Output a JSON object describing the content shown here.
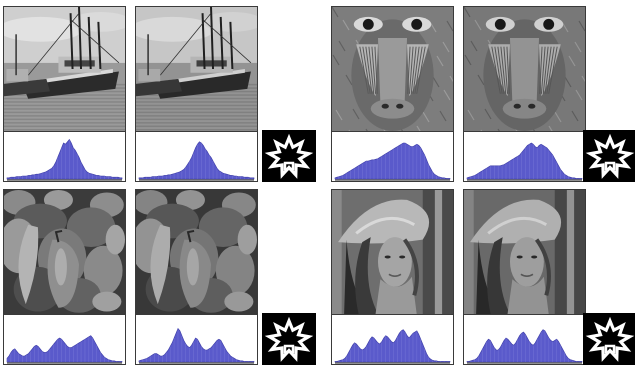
{
  "figure": {
    "groups": [
      {
        "scene": "boats",
        "tone": "light-gray",
        "histograms": [
          [
            2,
            2,
            3,
            3,
            3,
            4,
            4,
            4,
            5,
            5,
            5,
            6,
            6,
            7,
            7,
            8,
            8,
            9,
            10,
            11,
            12,
            14,
            16,
            18,
            22,
            28,
            36,
            44,
            52,
            60,
            58,
            62,
            66,
            60,
            52,
            48,
            42,
            36,
            28,
            22,
            16,
            12,
            10,
            9,
            8,
            7,
            6,
            6,
            5,
            5,
            5,
            4,
            4,
            4,
            3,
            3,
            3,
            3,
            2,
            2
          ],
          [
            2,
            2,
            2,
            3,
            3,
            3,
            3,
            4,
            4,
            4,
            5,
            5,
            5,
            6,
            6,
            7,
            7,
            8,
            9,
            10,
            11,
            12,
            14,
            16,
            20,
            25,
            30,
            36,
            44,
            52,
            58,
            62,
            60,
            56,
            50,
            46,
            40,
            36,
            30,
            24,
            18,
            14,
            12,
            10,
            9,
            8,
            7,
            6,
            6,
            5,
            5,
            4,
            4,
            4,
            3,
            3,
            3,
            2,
            2,
            2
          ]
        ]
      },
      {
        "scene": "baboon",
        "tone": "mid-gray",
        "histograms": [
          [
            2,
            3,
            4,
            5,
            6,
            8,
            10,
            12,
            14,
            16,
            18,
            20,
            22,
            24,
            26,
            28,
            30,
            30,
            31,
            32,
            32,
            33,
            34,
            36,
            38,
            40,
            42,
            44,
            46,
            48,
            50,
            52,
            54,
            56,
            58,
            60,
            60,
            58,
            56,
            54,
            54,
            56,
            58,
            56,
            52,
            46,
            40,
            32,
            24,
            18,
            12,
            8,
            6,
            4,
            3,
            2,
            2,
            1,
            1,
            1
          ],
          [
            2,
            3,
            4,
            5,
            6,
            8,
            10,
            12,
            14,
            16,
            18,
            20,
            22,
            22,
            22,
            22,
            22,
            22,
            23,
            24,
            26,
            28,
            30,
            32,
            34,
            36,
            38,
            40,
            44,
            48,
            52,
            56,
            58,
            60,
            58,
            54,
            52,
            56,
            58,
            56,
            54,
            52,
            48,
            44,
            40,
            34,
            28,
            22,
            16,
            12,
            8,
            6,
            4,
            3,
            2,
            2,
            1,
            1,
            1,
            1
          ]
        ]
      },
      {
        "scene": "peppers",
        "tone": "dark-gray",
        "histograms": [
          [
            6,
            10,
            16,
            20,
            22,
            18,
            14,
            12,
            10,
            10,
            12,
            14,
            18,
            22,
            26,
            28,
            26,
            22,
            18,
            16,
            16,
            18,
            22,
            26,
            30,
            34,
            38,
            40,
            38,
            34,
            30,
            26,
            24,
            24,
            26,
            28,
            30,
            32,
            34,
            36,
            38,
            40,
            42,
            44,
            40,
            34,
            28,
            22,
            16,
            12,
            8,
            6,
            4,
            3,
            2,
            2,
            1,
            1,
            1,
            1
          ],
          [
            2,
            3,
            4,
            5,
            6,
            8,
            10,
            12,
            14,
            14,
            12,
            10,
            10,
            12,
            16,
            20,
            26,
            32,
            40,
            48,
            56,
            52,
            44,
            36,
            30,
            26,
            24,
            28,
            34,
            40,
            38,
            32,
            26,
            22,
            20,
            20,
            22,
            24,
            28,
            32,
            36,
            38,
            36,
            30,
            24,
            18,
            14,
            10,
            8,
            6,
            4,
            3,
            2,
            2,
            1,
            1,
            1,
            1,
            1,
            1
          ]
        ]
      },
      {
        "scene": "portrait",
        "tone": "mixed-gray",
        "histograms": [
          [
            1,
            1,
            2,
            3,
            4,
            6,
            10,
            16,
            22,
            28,
            32,
            30,
            26,
            22,
            20,
            22,
            26,
            32,
            38,
            42,
            40,
            36,
            32,
            30,
            34,
            40,
            44,
            42,
            38,
            34,
            32,
            36,
            42,
            48,
            52,
            54,
            50,
            44,
            40,
            44,
            48,
            50,
            52,
            46,
            38,
            30,
            22,
            14,
            8,
            5,
            3,
            2,
            2,
            1,
            1,
            1,
            1,
            1,
            1,
            1
          ],
          [
            1,
            1,
            2,
            3,
            4,
            6,
            10,
            16,
            22,
            28,
            34,
            38,
            36,
            30,
            24,
            20,
            20,
            24,
            30,
            36,
            40,
            38,
            34,
            30,
            28,
            32,
            38,
            44,
            48,
            50,
            46,
            40,
            34,
            30,
            28,
            32,
            38,
            44,
            50,
            54,
            52,
            46,
            40,
            36,
            34,
            36,
            38,
            34,
            28,
            22,
            16,
            10,
            6,
            4,
            3,
            2,
            1,
            1,
            1,
            1
          ]
        ]
      }
    ],
    "colors": {
      "histogram_fill": "#5a5acb",
      "histogram_stroke": "#3c3ca6",
      "frame": "#3a3a3a",
      "mark_background": "#000000",
      "mark_foreground": "#ffffff"
    }
  }
}
